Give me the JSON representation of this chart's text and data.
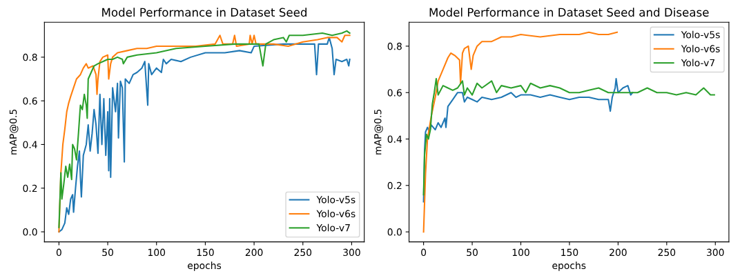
{
  "chart_data": [
    {
      "type": "line",
      "title": "Model Performance in Dataset Seed",
      "xlabel": "epochs",
      "ylabel": "mAP@0.5",
      "legend": "lower right",
      "grid": false,
      "xlim": [
        -14.9,
        312.9
      ],
      "ylim": [
        -0.046,
        0.96
      ],
      "xticks": [
        0,
        50,
        100,
        150,
        200,
        250,
        300
      ],
      "yticks": [
        {
          "value": 0,
          "label": "0.0"
        },
        {
          "value": 0.2,
          "label": "0.2"
        },
        {
          "value": 0.4,
          "label": "0.4"
        },
        {
          "value": 0.6,
          "label": "0.6"
        },
        {
          "value": 0.8,
          "label": "0.8"
        }
      ],
      "series": [
        {
          "name": "Yolo-v5s",
          "color": "#1f77b4",
          "x": [
            0,
            3,
            6,
            8,
            10,
            12,
            14,
            15,
            17,
            19,
            21,
            22,
            23,
            25,
            28,
            30,
            32,
            34,
            36,
            38,
            40,
            42,
            44,
            46,
            48,
            50,
            51,
            52,
            53,
            55,
            58,
            60,
            61,
            63,
            65,
            67,
            68,
            72,
            76,
            80,
            85,
            88,
            91,
            92,
            95,
            100,
            105,
            107,
            110,
            115,
            125,
            135,
            150,
            170,
            185,
            197,
            200,
            230,
            250,
            262,
            264,
            266,
            275,
            277,
            280,
            282,
            284,
            290,
            295,
            297,
            298
          ],
          "values": [
            0.0,
            0.01,
            0.04,
            0.11,
            0.08,
            0.15,
            0.17,
            0.09,
            0.2,
            0.3,
            0.37,
            0.25,
            0.16,
            0.35,
            0.4,
            0.49,
            0.37,
            0.45,
            0.56,
            0.49,
            0.36,
            0.63,
            0.4,
            0.61,
            0.35,
            0.55,
            0.28,
            0.61,
            0.25,
            0.66,
            0.55,
            0.68,
            0.43,
            0.69,
            0.66,
            0.32,
            0.7,
            0.68,
            0.72,
            0.73,
            0.75,
            0.78,
            0.58,
            0.77,
            0.72,
            0.75,
            0.73,
            0.79,
            0.77,
            0.79,
            0.78,
            0.8,
            0.82,
            0.82,
            0.83,
            0.82,
            0.85,
            0.86,
            0.86,
            0.86,
            0.72,
            0.86,
            0.86,
            0.89,
            0.84,
            0.72,
            0.79,
            0.78,
            0.79,
            0.76,
            0.79
          ]
        },
        {
          "name": "Yolo-v6s",
          "color": "#ff7f0e",
          "x": [
            0,
            2,
            4,
            6,
            8,
            10,
            12,
            15,
            18,
            22,
            25,
            28,
            30,
            35,
            38,
            39,
            40,
            42,
            45,
            50,
            51,
            53,
            55,
            60,
            70,
            80,
            90,
            100,
            120,
            140,
            160,
            165,
            168,
            178,
            180,
            182,
            195,
            196,
            198,
            200,
            202,
            220,
            235,
            250,
            265,
            275,
            285,
            290,
            293,
            298
          ],
          "values": [
            0.0,
            0.27,
            0.4,
            0.47,
            0.55,
            0.59,
            0.62,
            0.66,
            0.7,
            0.72,
            0.75,
            0.77,
            0.75,
            0.76,
            0.72,
            0.63,
            0.7,
            0.78,
            0.8,
            0.81,
            0.7,
            0.77,
            0.8,
            0.82,
            0.83,
            0.84,
            0.84,
            0.85,
            0.85,
            0.85,
            0.86,
            0.9,
            0.86,
            0.86,
            0.9,
            0.85,
            0.86,
            0.9,
            0.86,
            0.9,
            0.86,
            0.86,
            0.85,
            0.87,
            0.88,
            0.89,
            0.89,
            0.87,
            0.9,
            0.9
          ]
        },
        {
          "name": "Yolo-v7",
          "color": "#2ca02c",
          "x": [
            0,
            2,
            3,
            5,
            7,
            9,
            11,
            13,
            14,
            16,
            18,
            20,
            22,
            24,
            26,
            28,
            29,
            30,
            33,
            36,
            40,
            45,
            50,
            55,
            60,
            65,
            66,
            70,
            80,
            100,
            120,
            150,
            180,
            200,
            205,
            209,
            212,
            220,
            230,
            233,
            236,
            250,
            270,
            280,
            290,
            295,
            298
          ],
          "values": [
            0.02,
            0.27,
            0.15,
            0.22,
            0.3,
            0.25,
            0.31,
            0.24,
            0.4,
            0.38,
            0.33,
            0.45,
            0.58,
            0.56,
            0.63,
            0.58,
            0.52,
            0.7,
            0.73,
            0.76,
            0.77,
            0.78,
            0.79,
            0.79,
            0.8,
            0.79,
            0.77,
            0.8,
            0.81,
            0.82,
            0.84,
            0.85,
            0.86,
            0.86,
            0.86,
            0.76,
            0.86,
            0.88,
            0.89,
            0.87,
            0.9,
            0.9,
            0.91,
            0.9,
            0.91,
            0.92,
            0.91
          ]
        }
      ]
    },
    {
      "type": "line",
      "title": "Model Performance in Dataset Seed and Disease",
      "xlabel": "epochs",
      "ylabel": "mAP@0.5",
      "legend": "top right",
      "grid": false,
      "xlim": [
        -14.95,
        313.95
      ],
      "ylim": [
        -0.043,
        0.903
      ],
      "xticks": [
        0,
        50,
        100,
        150,
        200,
        250,
        300
      ],
      "yticks": [
        {
          "value": 0,
          "label": "0.0"
        },
        {
          "value": 0.2,
          "label": "0.2"
        },
        {
          "value": 0.4,
          "label": "0.4"
        },
        {
          "value": 0.6,
          "label": "0.6"
        },
        {
          "value": 0.8,
          "label": "0.8"
        }
      ],
      "series": [
        {
          "name": "Yolo-v5s",
          "color": "#1f77b4",
          "x": [
            0,
            1,
            2,
            4,
            6,
            8,
            12,
            15,
            18,
            22,
            23,
            25,
            30,
            35,
            40,
            42,
            45,
            50,
            55,
            60,
            70,
            80,
            90,
            95,
            100,
            110,
            120,
            130,
            140,
            150,
            160,
            170,
            180,
            190,
            192,
            194,
            197,
            198,
            200,
            205,
            210,
            213,
            215
          ],
          "values": [
            0.13,
            0.35,
            0.43,
            0.45,
            0.43,
            0.46,
            0.44,
            0.47,
            0.45,
            0.49,
            0.45,
            0.54,
            0.57,
            0.6,
            0.6,
            0.56,
            0.58,
            0.57,
            0.56,
            0.58,
            0.57,
            0.58,
            0.6,
            0.58,
            0.59,
            0.59,
            0.58,
            0.59,
            0.58,
            0.57,
            0.58,
            0.58,
            0.57,
            0.57,
            0.52,
            0.58,
            0.62,
            0.66,
            0.6,
            0.62,
            0.63,
            0.59,
            0.6
          ]
        },
        {
          "name": "Yolo-v6s",
          "color": "#ff7f0e",
          "x": [
            0,
            2,
            4,
            8,
            12,
            15,
            20,
            25,
            28,
            32,
            37,
            38,
            40,
            42,
            46,
            49,
            51,
            55,
            60,
            70,
            80,
            90,
            100,
            120,
            140,
            160,
            170,
            180,
            190,
            199
          ],
          "values": [
            0.0,
            0.25,
            0.4,
            0.5,
            0.58,
            0.65,
            0.7,
            0.75,
            0.77,
            0.76,
            0.74,
            0.64,
            0.77,
            0.79,
            0.8,
            0.7,
            0.76,
            0.8,
            0.82,
            0.82,
            0.84,
            0.84,
            0.85,
            0.84,
            0.85,
            0.85,
            0.86,
            0.85,
            0.85,
            0.86
          ]
        },
        {
          "name": "Yolo-v7",
          "color": "#2ca02c",
          "x": [
            0,
            1,
            3,
            5,
            7,
            9,
            11,
            13,
            15,
            20,
            25,
            30,
            35,
            40,
            42,
            45,
            50,
            55,
            60,
            70,
            75,
            80,
            90,
            100,
            105,
            110,
            120,
            130,
            140,
            150,
            160,
            170,
            180,
            190,
            200,
            210,
            220,
            230,
            240,
            250,
            260,
            270,
            280,
            288,
            295,
            299
          ],
          "values": [
            0.16,
            0.33,
            0.42,
            0.4,
            0.44,
            0.55,
            0.6,
            0.66,
            0.59,
            0.63,
            0.62,
            0.61,
            0.62,
            0.65,
            0.59,
            0.62,
            0.59,
            0.64,
            0.62,
            0.65,
            0.6,
            0.63,
            0.62,
            0.63,
            0.6,
            0.64,
            0.62,
            0.63,
            0.62,
            0.6,
            0.6,
            0.61,
            0.62,
            0.6,
            0.6,
            0.6,
            0.6,
            0.62,
            0.6,
            0.6,
            0.59,
            0.6,
            0.59,
            0.62,
            0.59,
            0.59
          ]
        }
      ]
    }
  ]
}
